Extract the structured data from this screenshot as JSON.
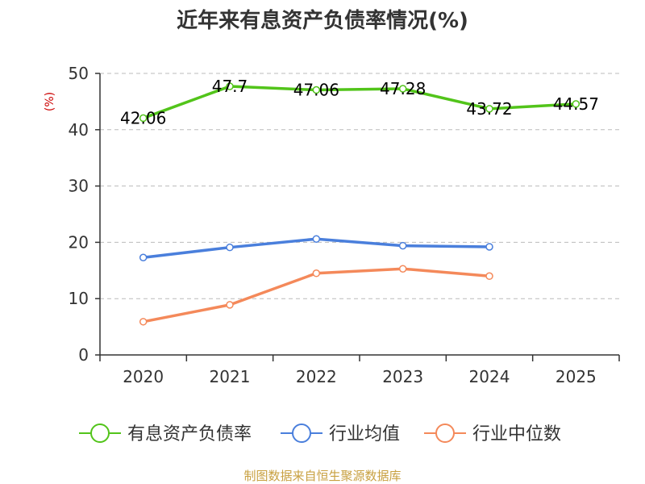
{
  "chart_data": {
    "type": "line",
    "title": "近年来有息资产负债率情况(%)",
    "ylabel": "(%)",
    "categories": [
      "2020",
      "2021",
      "2022",
      "2023",
      "2024",
      "2025"
    ],
    "ylim": [
      0,
      50
    ],
    "yticks": [
      0,
      10,
      20,
      30,
      40,
      50
    ],
    "grid": true,
    "legend_position": "bottom",
    "series": [
      {
        "name": "有息资产负债率",
        "color": "#52c41a",
        "values": [
          42.06,
          47.7,
          47.06,
          47.28,
          43.72,
          44.57
        ],
        "labels": [
          "42.06",
          "47.7",
          "47.06",
          "47.28",
          "43.72",
          "44.57"
        ],
        "show_labels": true
      },
      {
        "name": "行业均值",
        "color": "#4a7fdc",
        "values": [
          17.3,
          19.1,
          20.6,
          19.4,
          19.2,
          null
        ],
        "show_labels": false
      },
      {
        "name": "行业中位数",
        "color": "#f4895a",
        "values": [
          5.9,
          8.9,
          14.5,
          15.3,
          14.0,
          null
        ],
        "show_labels": false
      }
    ]
  },
  "source_text": "制图数据来自恒生聚源数据库",
  "colors": {
    "axis": "#333333",
    "grid": "#bbbbbb",
    "ylabel": "#cc0000",
    "source": "#c8a040"
  }
}
